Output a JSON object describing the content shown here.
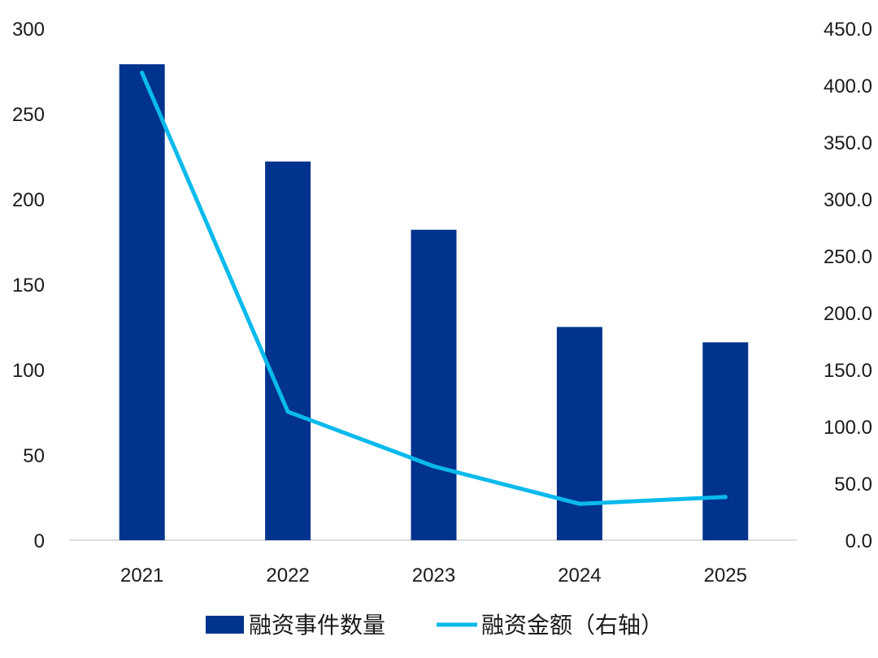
{
  "chart_data": {
    "type": "bar",
    "categories": [
      "2021",
      "2022",
      "2023",
      "2024",
      "2025"
    ],
    "series": [
      {
        "name": "融资事件数量",
        "kind": "bar",
        "axis": "left",
        "color": "#00338d",
        "values": [
          279,
          222,
          182,
          125,
          116
        ]
      },
      {
        "name": "融资金额（右轴）",
        "kind": "line",
        "axis": "right",
        "color": "#0abaec",
        "values": [
          411,
          113,
          65,
          32,
          38
        ]
      }
    ],
    "y_left": {
      "ylim": [
        0,
        300
      ],
      "ticks": [
        "0",
        "50",
        "100",
        "150",
        "200",
        "250",
        "300"
      ]
    },
    "y_right": {
      "ylim": [
        0,
        450
      ],
      "ticks": [
        "0.0",
        "50.0",
        "100.0",
        "150.0",
        "200.0",
        "250.0",
        "300.0",
        "350.0",
        "400.0",
        "450.0"
      ]
    },
    "grid": false,
    "legend_position": "bottom"
  }
}
